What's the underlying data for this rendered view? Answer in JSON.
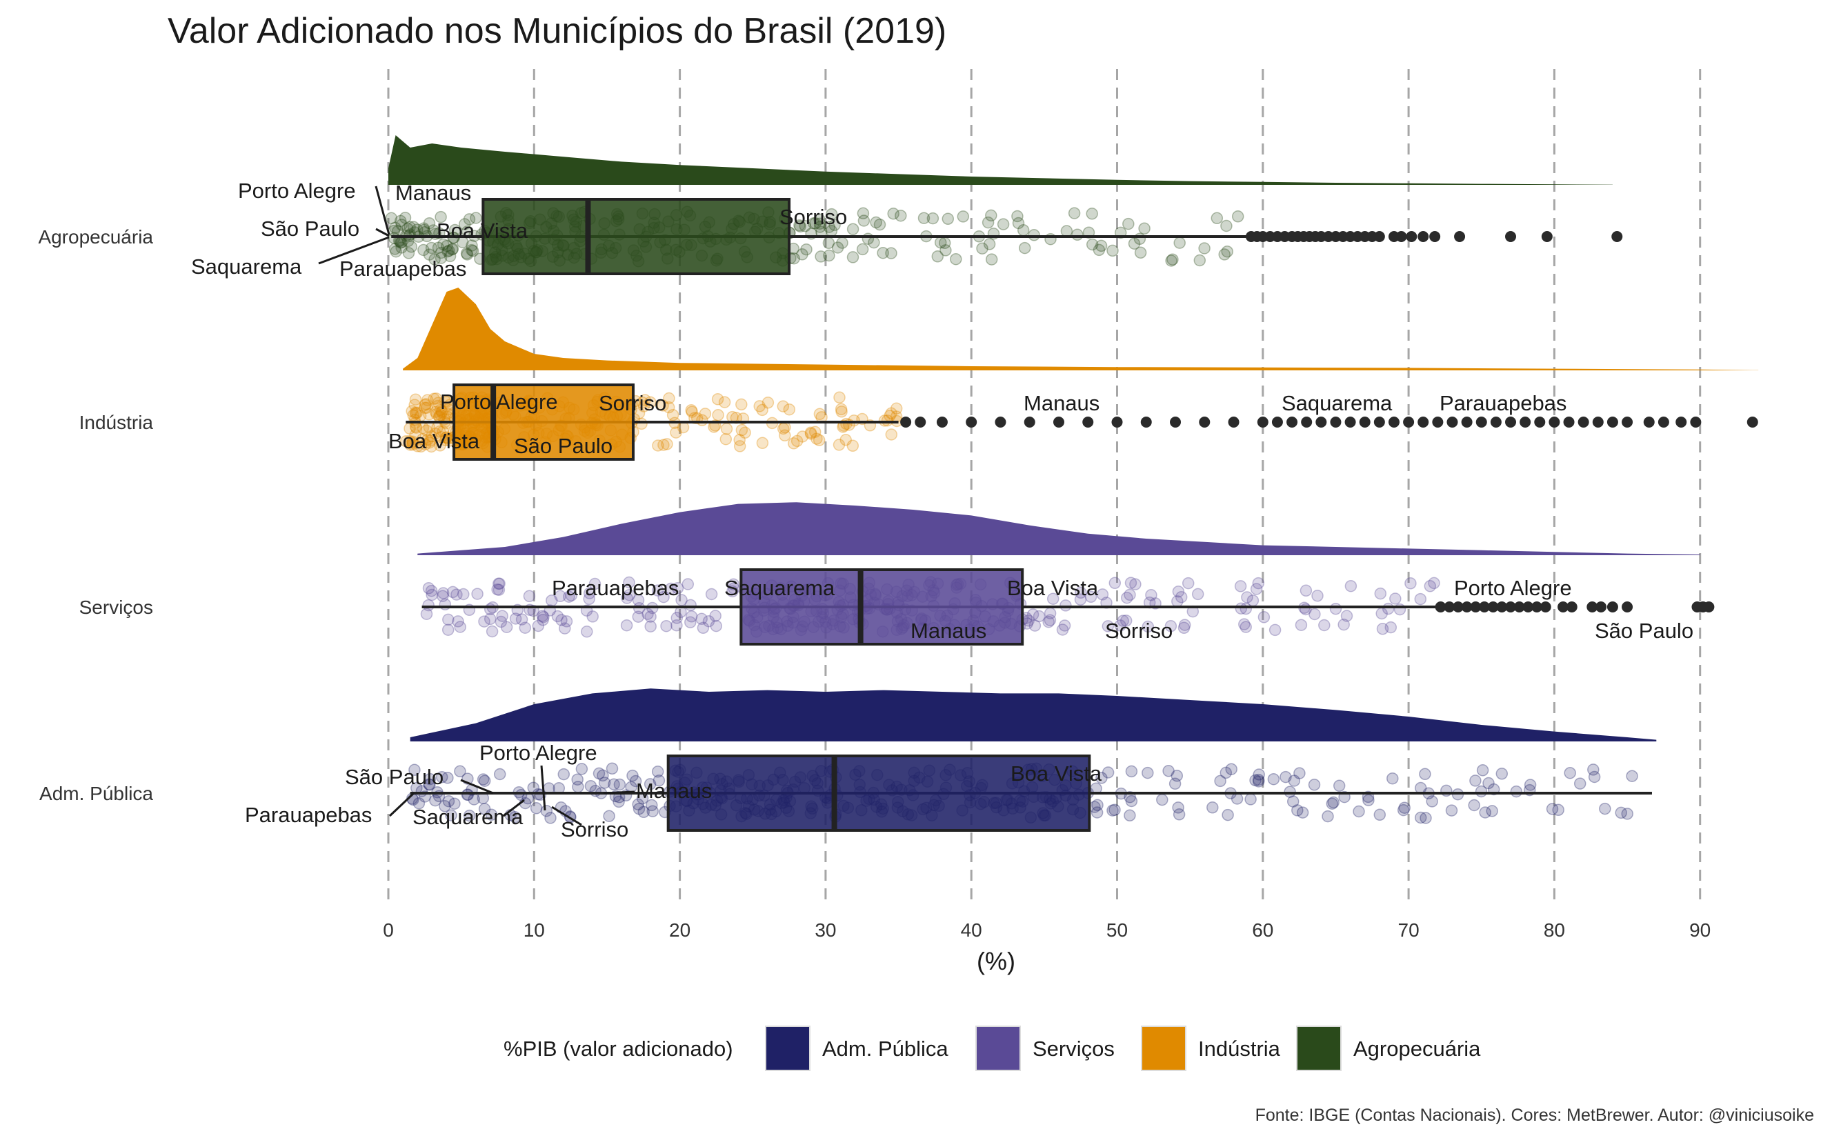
{
  "chart_data": {
    "type": "raincloud",
    "title": "Valor Adicionado nos Municípios do Brasil (2019)",
    "xlabel": "(%)",
    "ylabel": "",
    "xlim": [
      0,
      95
    ],
    "xticks": [
      0,
      10,
      20,
      30,
      40,
      50,
      60,
      70,
      80,
      90
    ],
    "grid": "vertical dashed",
    "caption": "Fonte: IBGE (Contas Nacionais). Cores: MetBrewer. Autor: @viniciusoike",
    "legend": {
      "title": "%PIB (valor adicionado)",
      "position": "bottom",
      "entries": [
        "Adm. Pública",
        "Serviços",
        "Indústria",
        "Agropecuária"
      ]
    },
    "series": [
      {
        "name": "Agropecuária",
        "color": "#2a4a1b",
        "box": {
          "whisker_low": 0.2,
          "q1": 6.5,
          "median": 13.7,
          "q3": 27.5,
          "whisker_high": 59
        },
        "outliers": [
          59.2,
          59.6,
          60.0,
          60.5,
          61.0,
          61.5,
          62.0,
          62.4,
          62.8,
          63.2,
          63.6,
          64.0,
          64.5,
          65.0,
          65.5,
          66.0,
          66.5,
          67.0,
          67.5,
          68.0,
          69.0,
          69.5,
          70.2,
          71.0,
          71.8,
          73.5,
          77.0,
          79.5,
          84.3
        ],
        "density": [
          [
            0,
            0.2
          ],
          [
            0.5,
            0.6
          ],
          [
            1.5,
            0.45
          ],
          [
            3,
            0.5
          ],
          [
            5,
            0.45
          ],
          [
            8,
            0.4
          ],
          [
            12,
            0.34
          ],
          [
            16,
            0.28
          ],
          [
            20,
            0.24
          ],
          [
            25,
            0.2
          ],
          [
            30,
            0.16
          ],
          [
            35,
            0.13
          ],
          [
            40,
            0.1
          ],
          [
            45,
            0.08
          ],
          [
            50,
            0.06
          ],
          [
            55,
            0.045
          ],
          [
            60,
            0.035
          ],
          [
            65,
            0.025
          ],
          [
            70,
            0.018
          ],
          [
            75,
            0.012
          ],
          [
            80,
            0.006
          ],
          [
            84,
            0.002
          ]
        ],
        "labels": [
          {
            "city": "Porto Alegre",
            "value": 0.2
          },
          {
            "city": "Manaus",
            "value": 0.3
          },
          {
            "city": "São Paulo",
            "value": 0.05
          },
          {
            "city": "Boa Vista",
            "value": 1.8
          },
          {
            "city": "Saquarema",
            "value": 0.8
          },
          {
            "city": "Parauapebas",
            "value": 0.6
          },
          {
            "city": "Sorriso",
            "value": 27.5
          }
        ]
      },
      {
        "name": "Indústria",
        "color": "#e08a00",
        "box": {
          "whisker_low": 1.2,
          "q1": 4.5,
          "median": 7.2,
          "q3": 16.8,
          "whisker_high": 35
        },
        "outliers": [
          35.5,
          36.5,
          38,
          40,
          42,
          44,
          46,
          48,
          50,
          52,
          54,
          56,
          58,
          60,
          61,
          62,
          63,
          64,
          65,
          66,
          67,
          68,
          69,
          70,
          71,
          72,
          73,
          74,
          75,
          76,
          77,
          78,
          79,
          80,
          81,
          82,
          83,
          84,
          85,
          86.5,
          87.5,
          88.7,
          89.7,
          93.6
        ],
        "density": [
          [
            1,
            0.02
          ],
          [
            2,
            0.15
          ],
          [
            3,
            0.55
          ],
          [
            4,
            0.95
          ],
          [
            4.8,
            1.0
          ],
          [
            6,
            0.8
          ],
          [
            7,
            0.5
          ],
          [
            8,
            0.35
          ],
          [
            10,
            0.2
          ],
          [
            12,
            0.15
          ],
          [
            15,
            0.12
          ],
          [
            20,
            0.09
          ],
          [
            25,
            0.08
          ],
          [
            30,
            0.07
          ],
          [
            35,
            0.06
          ],
          [
            40,
            0.05
          ],
          [
            50,
            0.04
          ],
          [
            60,
            0.035
          ],
          [
            70,
            0.03
          ],
          [
            80,
            0.02
          ],
          [
            90,
            0.01
          ],
          [
            94,
            0.002
          ]
        ],
        "labels": [
          {
            "city": "Porto Alegre",
            "value": 9.3
          },
          {
            "city": "Sorriso",
            "value": 16.5
          },
          {
            "city": "Boa Vista",
            "value": 4.0
          },
          {
            "city": "São Paulo",
            "value": 12.5
          },
          {
            "city": "Manaus",
            "value": 49.0
          },
          {
            "city": "Saquarema",
            "value": 62.0
          },
          {
            "city": "Parauapebas",
            "value": 81.0
          }
        ]
      },
      {
        "name": "Serviços",
        "color": "#5a4a96",
        "box": {
          "whisker_low": 2.3,
          "q1": 24.2,
          "median": 32.4,
          "q3": 43.5,
          "whisker_high": 72
        },
        "outliers": [
          72.2,
          72.8,
          73.4,
          74.0,
          74.6,
          75.2,
          75.8,
          76.4,
          77.0,
          77.6,
          78.2,
          78.8,
          79.4,
          80.6,
          81.2,
          82.6,
          83.2,
          84.0,
          85.0,
          89.8,
          90.2,
          90.6
        ],
        "density": [
          [
            2,
            0.02
          ],
          [
            8,
            0.1
          ],
          [
            12,
            0.22
          ],
          [
            16,
            0.38
          ],
          [
            20,
            0.52
          ],
          [
            24,
            0.62
          ],
          [
            28,
            0.64
          ],
          [
            32,
            0.6
          ],
          [
            36,
            0.55
          ],
          [
            40,
            0.48
          ],
          [
            44,
            0.36
          ],
          [
            48,
            0.26
          ],
          [
            52,
            0.2
          ],
          [
            56,
            0.16
          ],
          [
            60,
            0.12
          ],
          [
            65,
            0.1
          ],
          [
            70,
            0.08
          ],
          [
            75,
            0.06
          ],
          [
            80,
            0.04
          ],
          [
            85,
            0.02
          ],
          [
            90,
            0.008
          ]
        ],
        "labels": [
          {
            "city": "Parauapebas",
            "value": 14.5
          },
          {
            "city": "Saquarema",
            "value": 25.0
          },
          {
            "city": "Boa Vista",
            "value": 43.5
          },
          {
            "city": "Manaus",
            "value": 38.0
          },
          {
            "city": "Sorriso",
            "value": 52.0
          },
          {
            "city": "Porto Alegre",
            "value": 78.0
          },
          {
            "city": "São Paulo",
            "value": 88.0
          }
        ]
      },
      {
        "name": "Adm. Pública",
        "color": "#1f2166",
        "box": {
          "whisker_low": 1.5,
          "q1": 19.2,
          "median": 30.6,
          "q3": 48.1,
          "whisker_high": 86.7
        },
        "outliers": [],
        "density": [
          [
            1.5,
            0.05
          ],
          [
            6,
            0.22
          ],
          [
            10,
            0.45
          ],
          [
            14,
            0.58
          ],
          [
            18,
            0.64
          ],
          [
            22,
            0.6
          ],
          [
            26,
            0.62
          ],
          [
            30,
            0.6
          ],
          [
            34,
            0.62
          ],
          [
            38,
            0.6
          ],
          [
            42,
            0.58
          ],
          [
            46,
            0.58
          ],
          [
            50,
            0.55
          ],
          [
            55,
            0.5
          ],
          [
            60,
            0.45
          ],
          [
            65,
            0.38
          ],
          [
            70,
            0.3
          ],
          [
            75,
            0.2
          ],
          [
            80,
            0.12
          ],
          [
            85,
            0.05
          ],
          [
            87,
            0.02
          ]
        ],
        "labels": [
          {
            "city": "Porto Alegre",
            "value": 10.8
          },
          {
            "city": "São Paulo",
            "value": 7.0
          },
          {
            "city": "Manaus",
            "value": 15.5
          },
          {
            "city": "Parauapebas",
            "value": 1.5
          },
          {
            "city": "Saquarema",
            "value": 5.0
          },
          {
            "city": "Sorriso",
            "value": 13.0
          },
          {
            "city": "Boa Vista",
            "value": 46.5
          }
        ]
      }
    ]
  }
}
